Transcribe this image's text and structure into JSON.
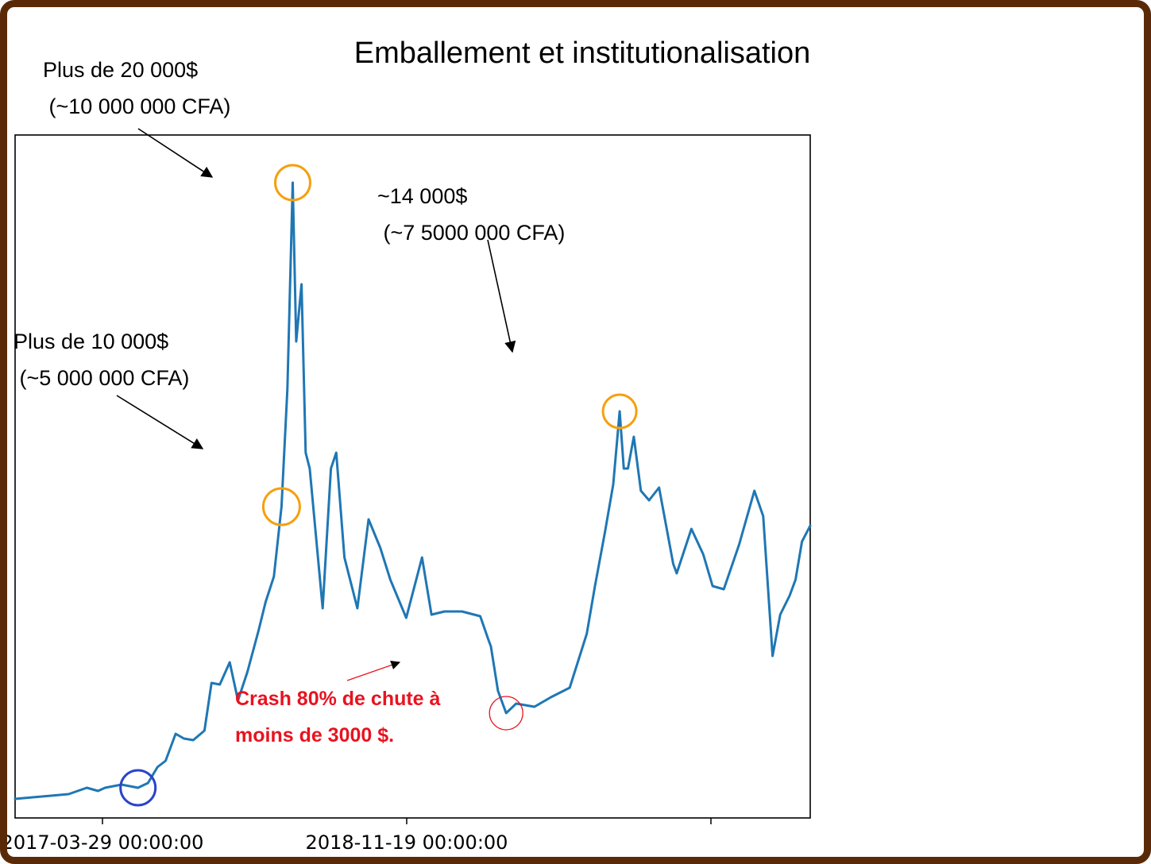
{
  "chart_data": {
    "type": "line",
    "title": "Emballement et institutionalisation",
    "xlabel": "",
    "ylabel": "",
    "xtick_labels": [
      "2017-03-29 00:00:00",
      "2018-11-19 00:00:00",
      ""
    ],
    "xlim": [
      "2016-09-01",
      "2020-05-15"
    ],
    "ylim": [
      0,
      21500
    ],
    "grid": false,
    "legend": "none",
    "series": [
      {
        "color": "#1f77b4",
        "x": [
          "2016-09-01",
          "2016-10-01",
          "2016-11-01",
          "2016-12-01",
          "2017-01-01",
          "2017-01-20",
          "2017-02-01",
          "2017-03-01",
          "2017-03-15",
          "2017-03-29",
          "2017-04-15",
          "2017-05-01",
          "2017-05-15",
          "2017-06-01",
          "2017-06-15",
          "2017-07-01",
          "2017-07-20",
          "2017-08-01",
          "2017-08-15",
          "2017-09-01",
          "2017-09-15",
          "2017-10-01",
          "2017-10-20",
          "2017-11-01",
          "2017-11-15",
          "2017-11-28",
          "2017-12-08",
          "2017-12-17",
          "2017-12-23",
          "2018-01-01",
          "2018-01-08",
          "2018-01-15",
          "2018-02-06",
          "2018-02-20",
          "2018-03-01",
          "2018-03-15",
          "2018-04-06",
          "2018-04-25",
          "2018-05-15",
          "2018-06-01",
          "2018-06-28",
          "2018-07-25",
          "2018-08-10",
          "2018-09-01",
          "2018-10-01",
          "2018-11-01",
          "2018-11-15",
          "2018-11-19",
          "2018-12-01",
          "2018-12-15",
          "2019-01-01",
          "2019-02-01",
          "2019-03-01",
          "2019-04-02",
          "2019-05-01",
          "2019-05-15",
          "2019-06-01",
          "2019-06-15",
          "2019-06-26",
          "2019-07-03",
          "2019-07-10",
          "2019-07-20",
          "2019-08-01",
          "2019-08-15",
          "2019-09-01",
          "2019-09-25",
          "2019-10-01",
          "2019-10-26",
          "2019-11-15",
          "2019-12-01",
          "2019-12-20",
          "2020-01-15",
          "2020-02-10",
          "2020-02-25",
          "2020-03-12",
          "2020-03-25",
          "2020-04-10",
          "2020-04-20",
          "2020-05-01",
          "2020-05-15"
        ],
        "y": [
          600,
          650,
          700,
          750,
          950,
          850,
          950,
          1050,
          1000,
          950,
          1100,
          1600,
          1800,
          2650,
          2500,
          2450,
          2750,
          4250,
          4200,
          4900,
          3700,
          4600,
          5900,
          6800,
          7600,
          9800,
          13500,
          20000,
          15000,
          16800,
          11500,
          11000,
          6600,
          11000,
          11500,
          8200,
          6600,
          9400,
          8500,
          7500,
          6300,
          8200,
          6400,
          6500,
          6500,
          6350,
          5600,
          5400,
          4000,
          3300,
          3600,
          3500,
          3800,
          4100,
          5800,
          7300,
          9000,
          10500,
          12800,
          11000,
          11000,
          12000,
          10300,
          10000,
          10400,
          8000,
          7700,
          9100,
          8300,
          7300,
          7200,
          8600,
          10300,
          9500,
          5100,
          6400,
          7000,
          7500,
          8700,
          9200
        ]
      }
    ],
    "annotations": [
      {
        "lines": [
          "Plus de 10 000$",
          " (~5 000 000 CFA)"
        ],
        "x": "2017-11-28",
        "y": 9800,
        "marker": "circle",
        "color": "#f5a00f"
      },
      {
        "lines": [
          "Plus de 20 000$",
          " (~10 000 000 CFA)"
        ],
        "x": "2017-12-17",
        "y": 20000,
        "marker": "circle",
        "color": "#f5a00f"
      },
      {
        "lines": [
          "~14 000$",
          " (~7 5000 000 CFA)"
        ],
        "x": "2019-06-26",
        "y": 12800,
        "marker": "circle",
        "color": "#f5a00f"
      },
      {
        "lines": [
          "Crash 80% de chute à",
          "moins de 3000 $."
        ],
        "x": "2018-12-15",
        "y": 3300,
        "marker": "circle",
        "color": "#e8131f"
      },
      {
        "lines": [],
        "x": "2017-03-29",
        "y": 950,
        "marker": "circle",
        "color": "#2a44c8"
      }
    ]
  }
}
